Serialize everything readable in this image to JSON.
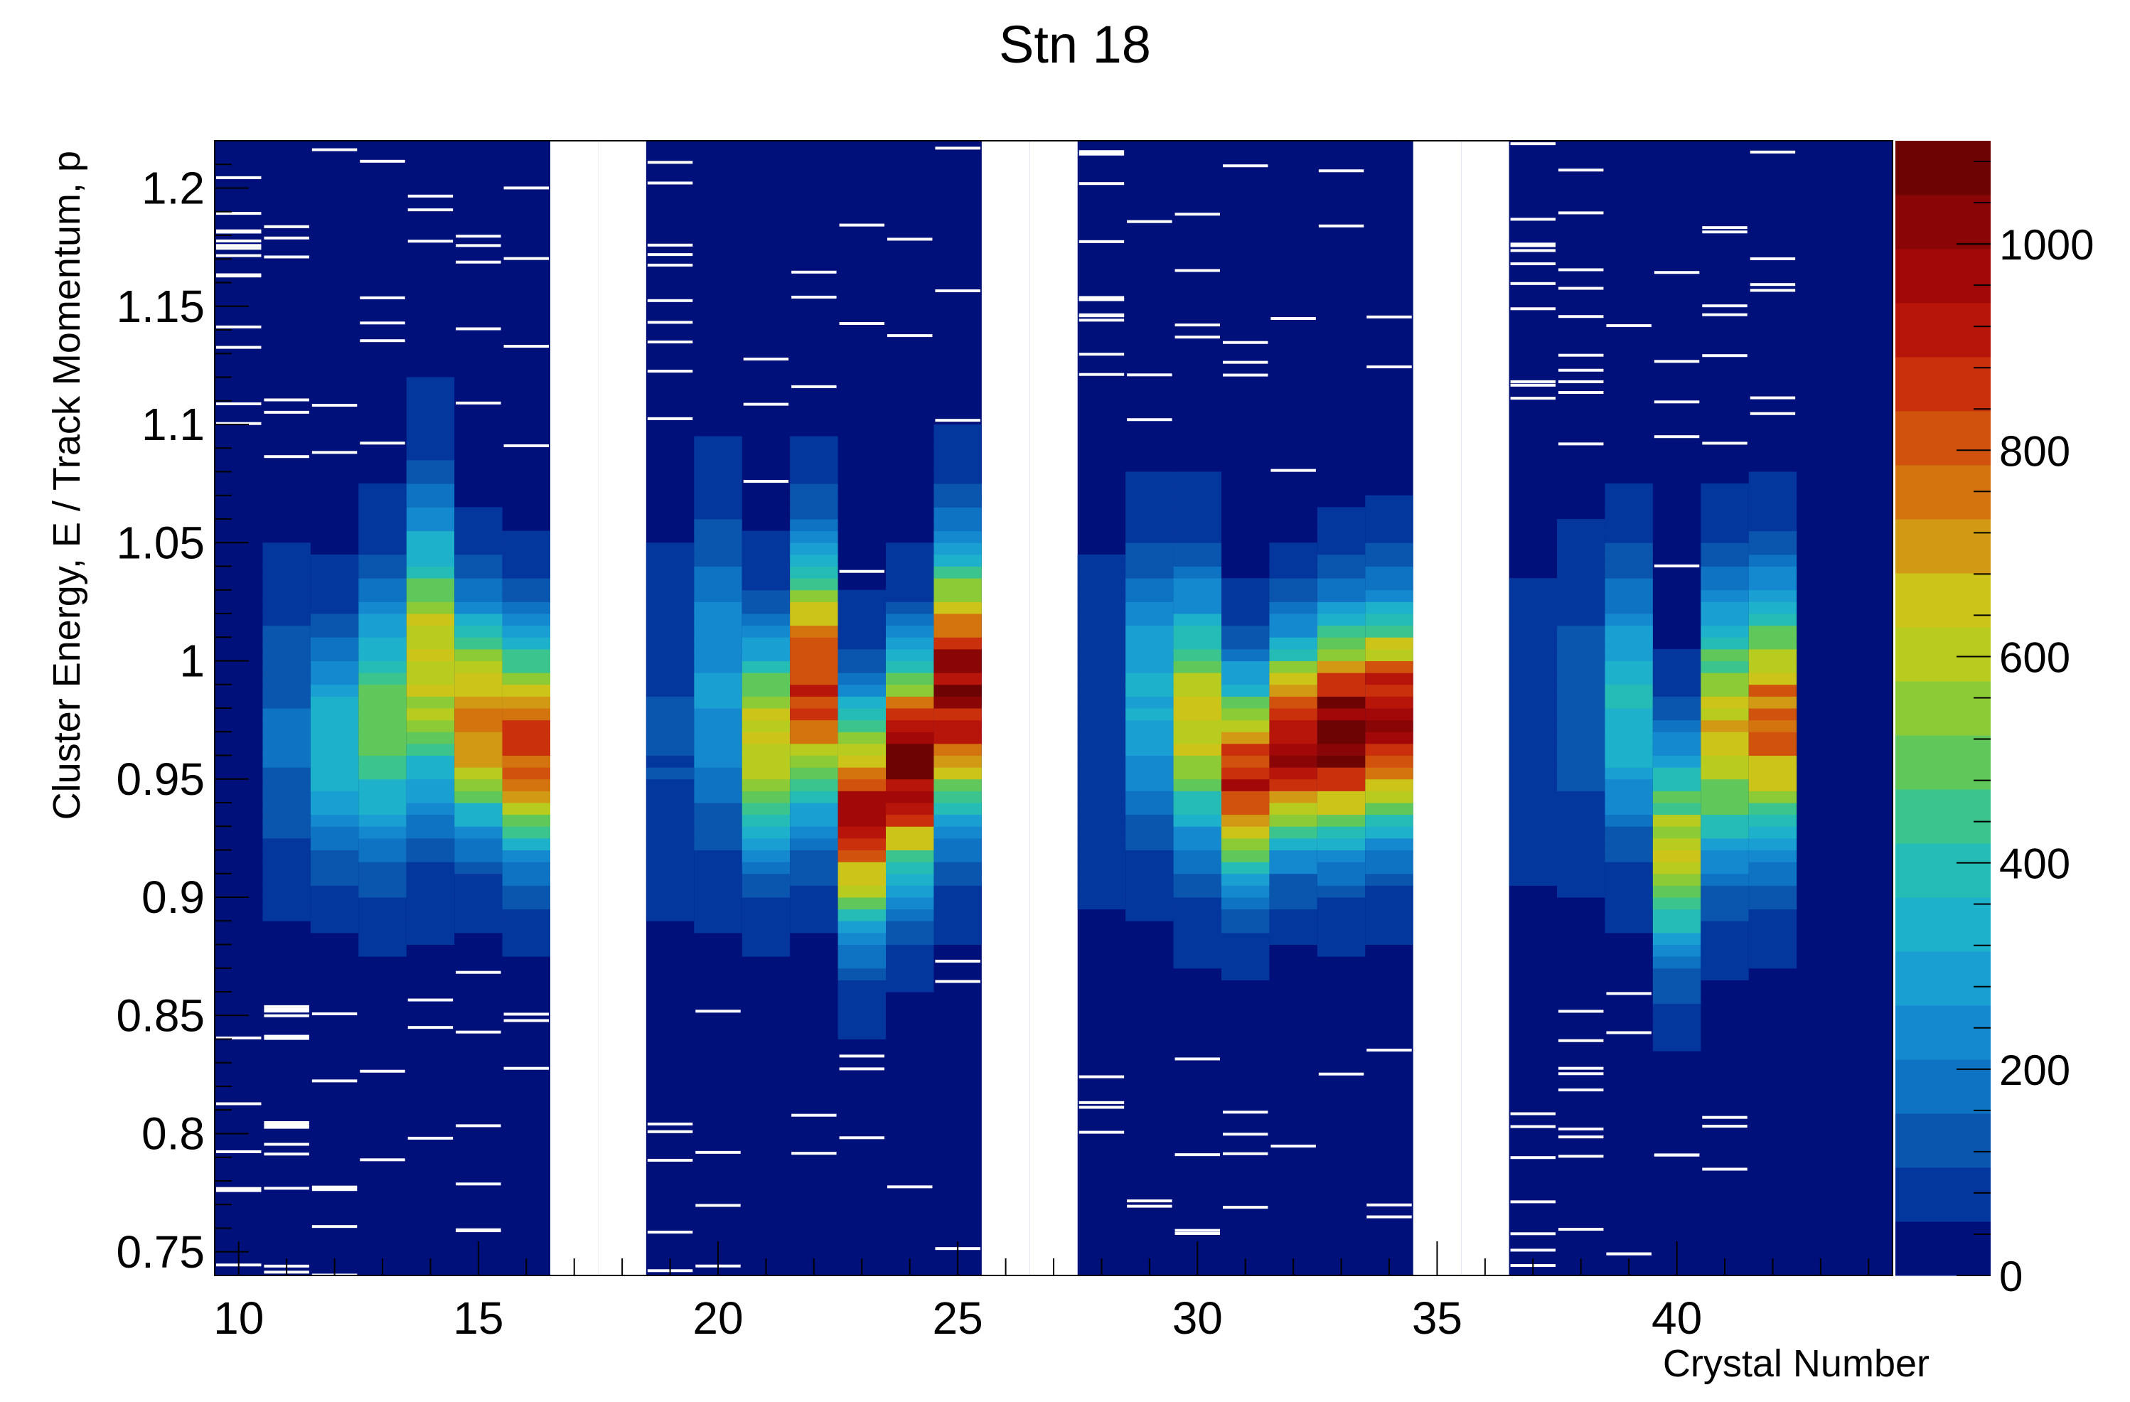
{
  "chart_data": {
    "type": "heatmap",
    "title": "Stn 18",
    "xlabel": "Crystal Number",
    "ylabel": "Cluster Energy, E / Track Momentum, p",
    "xlim": [
      9.5,
      44.5
    ],
    "ylim": [
      0.74,
      1.22
    ],
    "x_ticks": [
      10,
      15,
      20,
      25,
      30,
      35,
      40
    ],
    "y_ticks": [
      0.75,
      0.8,
      0.85,
      0.9,
      0.95,
      1.0,
      1.05,
      1.1,
      1.15,
      1.2
    ],
    "y_tick_labels": [
      "0.75",
      "0.8",
      "0.85",
      "0.9",
      "0.95",
      "1",
      "1.05",
      "1.1",
      "1.15",
      "1.2"
    ],
    "zlim": [
      0,
      1100
    ],
    "z_ticks": [
      0,
      200,
      400,
      600,
      800,
      1000
    ],
    "empty_columns": [
      17,
      18,
      26,
      27,
      35,
      36
    ],
    "crystals": [
      {
        "x": 10,
        "peak": 0,
        "mean": 0.97,
        "sigma": 0.04
      },
      {
        "x": 11,
        "peak": 120,
        "mean": 0.97,
        "sigma": 0.035
      },
      {
        "x": 12,
        "peak": 330,
        "mean": 0.965,
        "sigma": 0.03
      },
      {
        "x": 13,
        "peak": 470,
        "mean": 0.975,
        "sigma": 0.035
      },
      {
        "x": 14,
        "peak": 620,
        "mean": 1.0,
        "sigma": 0.04
      },
      {
        "x": 15,
        "peak": 740,
        "mean": 0.975,
        "sigma": 0.03
      },
      {
        "x": 16,
        "peak": 820,
        "mean": 0.965,
        "sigma": 0.03
      },
      {
        "x": 19,
        "peak": 60,
        "mean": 0.97,
        "sigma": 0.04
      },
      {
        "x": 20,
        "peak": 230,
        "mean": 0.99,
        "sigma": 0.04
      },
      {
        "x": 21,
        "peak": 640,
        "mean": 0.965,
        "sigma": 0.03
      },
      {
        "x": 22,
        "peak": 870,
        "mean": 0.99,
        "sigma": 0.035
      },
      {
        "x": 23,
        "peak": 950,
        "mean": 0.935,
        "sigma": 0.03
      },
      {
        "x": 24,
        "peak": 1040,
        "mean": 0.955,
        "sigma": 0.03
      },
      {
        "x": 25,
        "peak": 1000,
        "mean": 0.99,
        "sigma": 0.035
      },
      {
        "x": 28,
        "peak": 50,
        "mean": 0.97,
        "sigma": 0.04
      },
      {
        "x": 29,
        "peak": 300,
        "mean": 0.985,
        "sigma": 0.035
      },
      {
        "x": 30,
        "peak": 600,
        "mean": 0.975,
        "sigma": 0.035
      },
      {
        "x": 31,
        "peak": 870,
        "mean": 0.95,
        "sigma": 0.028
      },
      {
        "x": 32,
        "peak": 980,
        "mean": 0.965,
        "sigma": 0.028
      },
      {
        "x": 33,
        "peak": 1080,
        "mean": 0.97,
        "sigma": 0.03
      },
      {
        "x": 34,
        "peak": 1020,
        "mean": 0.975,
        "sigma": 0.03
      },
      {
        "x": 37,
        "peak": 30,
        "mean": 0.97,
        "sigma": 0.04
      },
      {
        "x": 38,
        "peak": 100,
        "mean": 0.98,
        "sigma": 0.035
      },
      {
        "x": 39,
        "peak": 340,
        "mean": 0.98,
        "sigma": 0.035
      },
      {
        "x": 40,
        "peak": 560,
        "mean": 0.92,
        "sigma": 0.03
      },
      {
        "x": 41,
        "peak": 650,
        "mean": 0.97,
        "sigma": 0.035
      },
      {
        "x": 42,
        "peak": 780,
        "mean": 0.975,
        "sigma": 0.035
      }
    ],
    "palette": [
      "#00107a",
      "#04379e",
      "#0a55ad",
      "#0e73c2",
      "#1489cf",
      "#1a9fd3",
      "#1eb1cb",
      "#26bcb6",
      "#3cc48f",
      "#60c85a",
      "#8ccb35",
      "#b8cc1f",
      "#cdc41a",
      "#d29a14",
      "#d3740f",
      "#d1520c",
      "#c9300b",
      "#b71509",
      "#a30808",
      "#8a0505",
      "#6e0303"
    ],
    "grid": false,
    "legend": "colorbar-right"
  }
}
